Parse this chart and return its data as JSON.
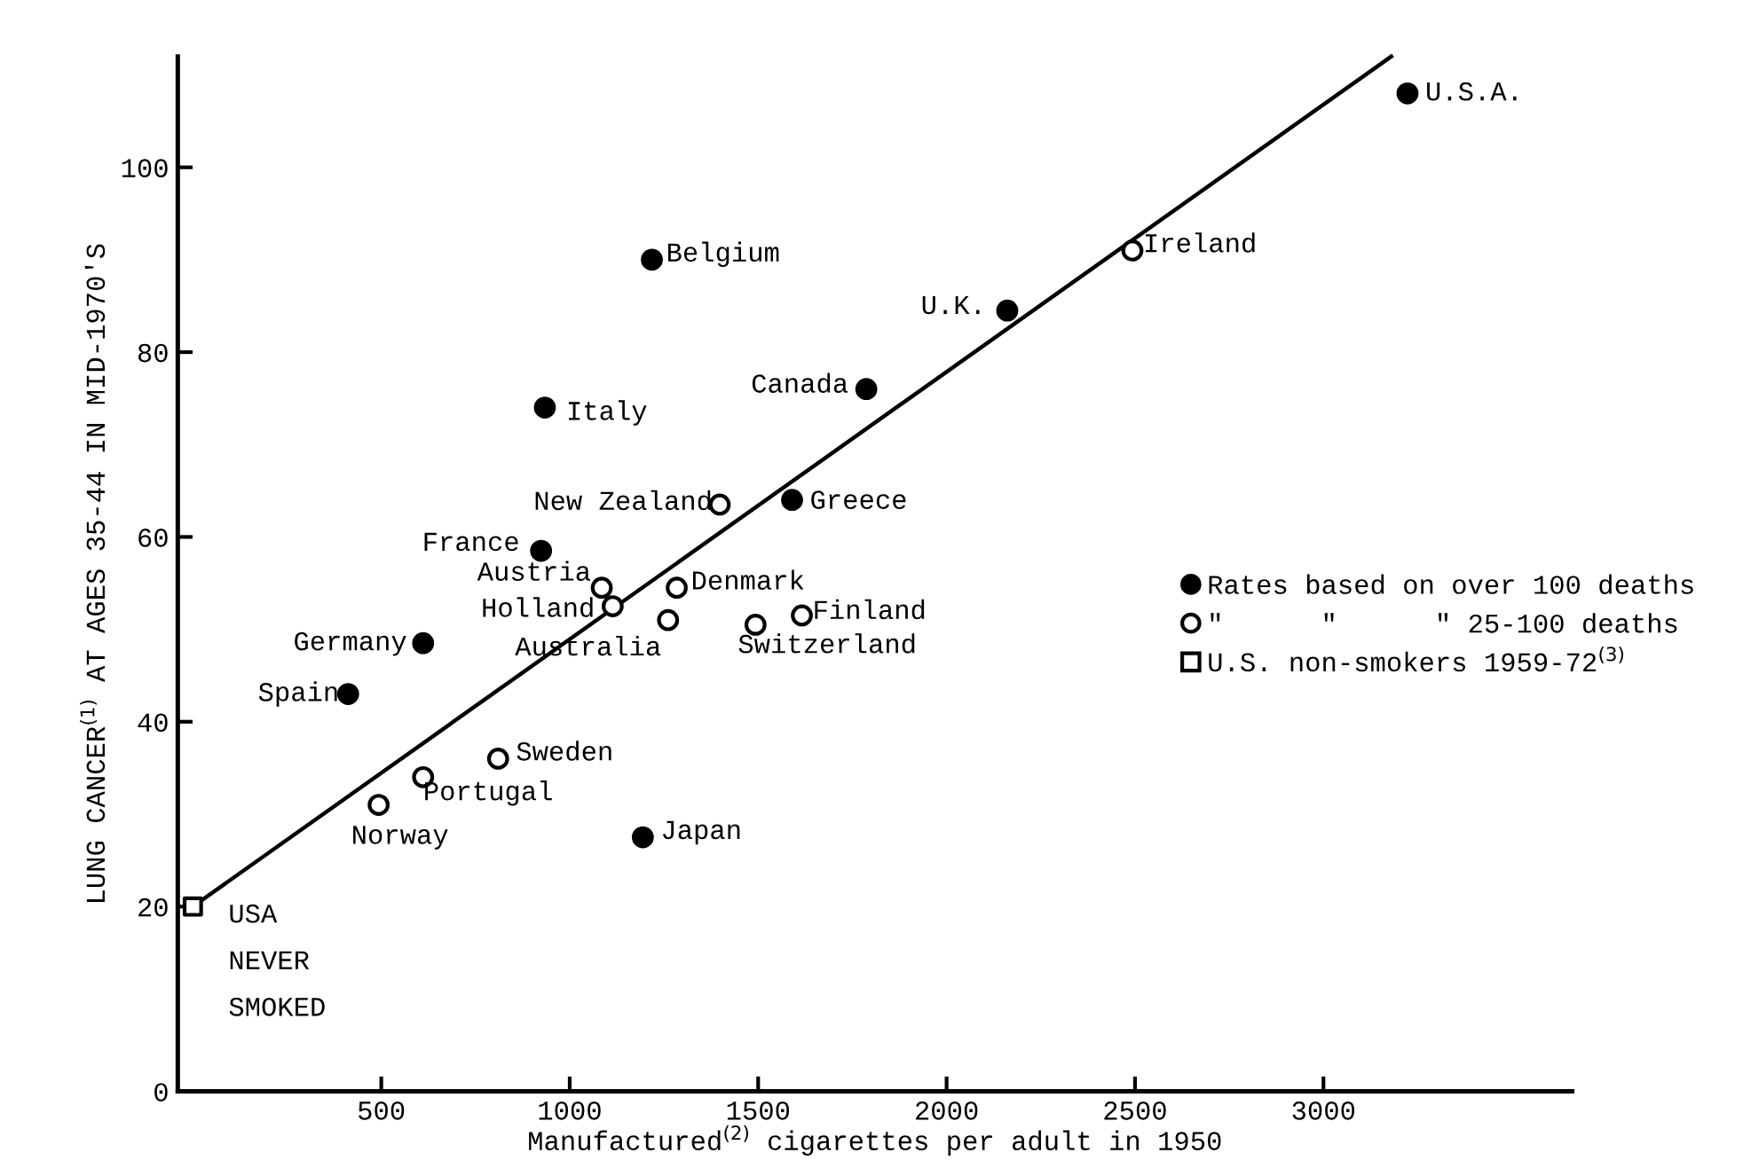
{
  "chart_data": {
    "type": "scatter",
    "xlabel": "Manufactured$^{(2)}$ cigarettes per adult in 1950",
    "ylabel": "LUNG CANCER$^{(1)}$ AT AGES 35-44 IN MID-1970'S",
    "xlim": [
      -40,
      3660
    ],
    "ylim": [
      0,
      112
    ],
    "xticks": [
      500,
      1000,
      1500,
      2000,
      2500,
      3000
    ],
    "yticks": [
      0,
      20,
      40,
      60,
      80,
      100
    ],
    "grid": false,
    "legend": "right",
    "series": [
      {
        "name": "Rates based on over 100 deaths",
        "marker": "circle",
        "color": "#000000",
        "x": [
          3223,
          2161,
          1218,
          1787,
          934,
          1590,
          924,
          611,
          412,
          1194
        ],
        "values": [
          108,
          84.5,
          90,
          76,
          74,
          64,
          58.5,
          48.5,
          43,
          27.5
        ]
      },
      {
        "name": "\"      \"      \" 25-100 deaths",
        "marker": "circle",
        "color": "#000000",
        "x": [
          2493,
          1398,
          1085,
          1114,
          1261,
          1284,
          1493,
          1616,
          810,
          611,
          493
        ],
        "values": [
          91,
          63.5,
          54.5,
          52.5,
          51,
          54.5,
          50.5,
          51.5,
          36,
          34,
          31
        ]
      },
      {
        "name": "U.S. non-smokers 1959-72$^{(3)}$",
        "marker": "square",
        "color": "#000000",
        "x": [
          0
        ],
        "values": [
          20
        ]
      },
      {
        "type": "line",
        "marker": "none",
        "color": "#000000",
        "x": [
          0,
          3180
        ],
        "values": [
          20,
          112
        ]
      }
    ],
    "annotations": [
      {
        "text": "U.S.A.",
        "x": 3223,
        "y": 108
      },
      {
        "text": "Ireland",
        "x": 2493,
        "y": 91
      },
      {
        "text": "U.K.",
        "x": 2161,
        "y": 84.5
      },
      {
        "text": "Belgium",
        "x": 1218,
        "y": 90
      },
      {
        "text": "Canada",
        "x": 1787,
        "y": 76
      },
      {
        "text": "Italy",
        "x": 934,
        "y": 74
      },
      {
        "text": "Greece",
        "x": 1590,
        "y": 64
      },
      {
        "text": "New Zealand",
        "x": 1398,
        "y": 63.5
      },
      {
        "text": "France",
        "x": 924,
        "y": 58.5
      },
      {
        "text": "Austria",
        "x": 1085,
        "y": 54.5
      },
      {
        "text": "Holland",
        "x": 1114,
        "y": 52.5
      },
      {
        "text": "Australia",
        "x": 1261,
        "y": 51
      },
      {
        "text": "Denmark",
        "x": 1284,
        "y": 54.5
      },
      {
        "text": "Switzerland",
        "x": 1493,
        "y": 50.5
      },
      {
        "text": "Finland",
        "x": 1616,
        "y": 51.5
      },
      {
        "text": "Germany",
        "x": 611,
        "y": 48.5
      },
      {
        "text": "Spain",
        "x": 412,
        "y": 43
      },
      {
        "text": "Sweden",
        "x": 810,
        "y": 36
      },
      {
        "text": "Portugal",
        "x": 611,
        "y": 34
      },
      {
        "text": "Norway",
        "x": 493,
        "y": 31
      },
      {
        "text": "Japan",
        "x": 1194,
        "y": 27.5
      },
      {
        "text": "USA\n\nNEVER\n\nSMOKED",
        "x": 0,
        "y": 20
      }
    ]
  }
}
